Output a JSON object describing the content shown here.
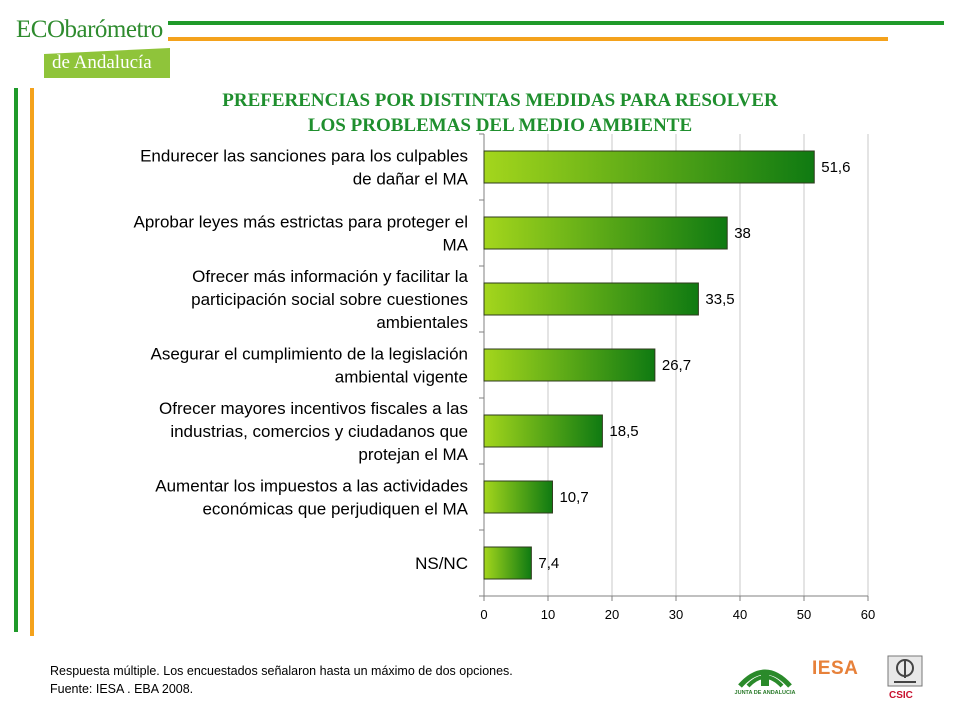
{
  "header": {
    "logo_top": "ECObarómetro",
    "logo_bottom": "de Andalucía",
    "title_line1": "PREFERENCIAS POR DISTINTAS MEDIDAS PARA RESOLVER",
    "title_line2": "LOS PROBLEMAS DEL MEDIO AMBIENTE"
  },
  "colors": {
    "accent_green": "#1f9a2a",
    "accent_orange": "#f4a21c",
    "bar_light": "#a4d61c",
    "bar_dark": "#0f7a12"
  },
  "chart_data": {
    "type": "bar",
    "orientation": "horizontal",
    "categories": [
      [
        "Endurecer las sanciones para los culpables",
        "de dañar el MA"
      ],
      [
        "Aprobar leyes más estrictas para proteger el",
        "MA"
      ],
      [
        "Ofrecer más información y facilitar la",
        "participación social sobre cuestiones",
        "ambientales"
      ],
      [
        "Asegurar el cumplimiento de la legislación",
        "ambiental vigente"
      ],
      [
        "Ofrecer mayores incentivos fiscales a las",
        "industrias, comercios y ciudadanos que",
        "protejan el MA"
      ],
      [
        "Aumentar los impuestos a las actividades",
        "económicas que perjudiquen el MA"
      ],
      [
        "NS/NC"
      ]
    ],
    "values": [
      51.6,
      38,
      33.5,
      26.7,
      18.5,
      10.7,
      7.4
    ],
    "value_labels": [
      "51,6",
      "38",
      "33,5",
      "26,7",
      "18,5",
      "10,7",
      "7,4"
    ],
    "xlim": [
      0,
      60
    ],
    "xticks": [
      0,
      10,
      20,
      30,
      40,
      50,
      60
    ],
    "grid": "vertical",
    "legend": "none"
  },
  "footer": {
    "note_line1": "Respuesta múltiple. Los encuestados señalaron hasta un máximo de dos opciones.",
    "note_line2": "Fuente: IESA . EBA 2008.",
    "logo_junta": "JUNTA DE ANDALUCIA",
    "logo_iesa": "IESA",
    "logo_csic": "CSIC"
  }
}
